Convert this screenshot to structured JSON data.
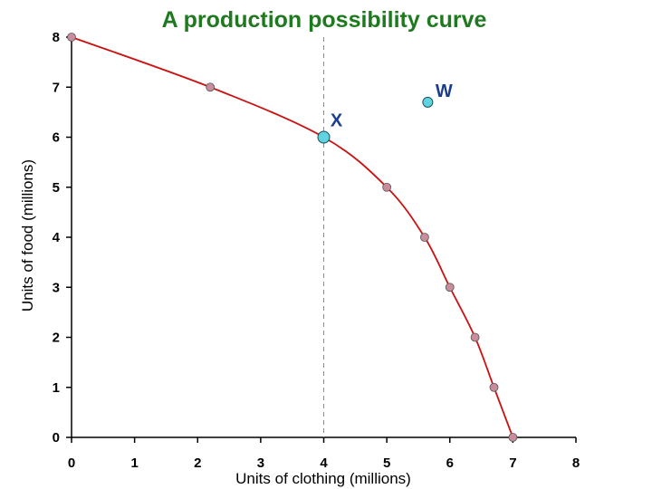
{
  "chart_data": {
    "type": "line",
    "title": "A production possibility curve",
    "xlabel": "Units of clothing (millions)",
    "ylabel": "Units of food (millions)",
    "xlim": [
      0,
      8
    ],
    "ylim": [
      0,
      8
    ],
    "x_ticks": [
      "0",
      "1",
      "2",
      "3",
      "4",
      "5",
      "6",
      "7",
      "8"
    ],
    "y_ticks": [
      "0",
      "1",
      "2",
      "3",
      "4",
      "5",
      "6",
      "7",
      "8"
    ],
    "grid": false,
    "curve": {
      "color": "#cc1111",
      "point_color": "#c98c9c",
      "points": [
        {
          "x": 0,
          "y": 8
        },
        {
          "x": 2.2,
          "y": 7
        },
        {
          "x": 4,
          "y": 6
        },
        {
          "x": 5,
          "y": 5
        },
        {
          "x": 5.6,
          "y": 4
        },
        {
          "x": 6,
          "y": 3
        },
        {
          "x": 6.4,
          "y": 2
        },
        {
          "x": 6.7,
          "y": 1
        },
        {
          "x": 7,
          "y": 0
        }
      ]
    },
    "highlight_points": [
      {
        "label": "X",
        "x": 4,
        "y": 6,
        "color": "#5fd3df"
      },
      {
        "label": "W",
        "x": 5.65,
        "y": 6.7,
        "color": "#5fd3df"
      }
    ],
    "reference_line": {
      "x": 4,
      "style": "dashed",
      "color": "#888888"
    }
  }
}
